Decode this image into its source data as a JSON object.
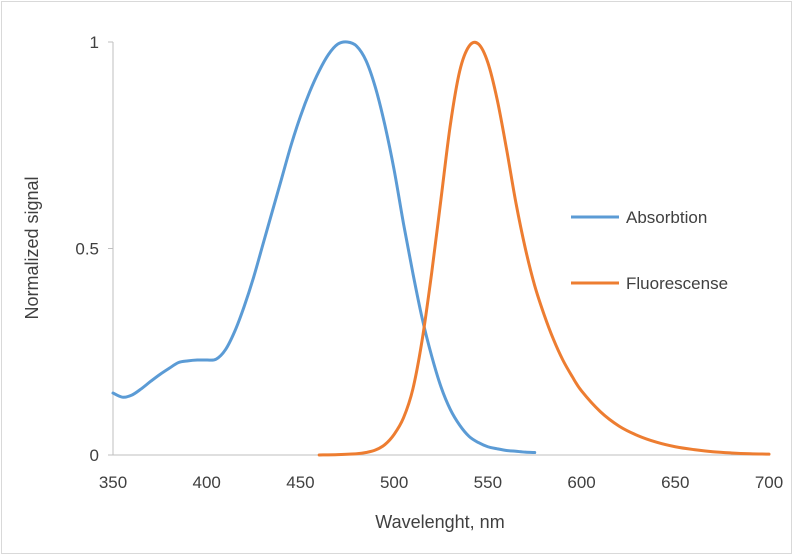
{
  "chart_data": {
    "type": "line",
    "title": "",
    "xlabel": "Wavelenght, nm",
    "ylabel": "Normalized signal",
    "xlim": [
      350,
      700
    ],
    "ylim": [
      0,
      1
    ],
    "x_ticks": [
      350,
      400,
      450,
      500,
      550,
      600,
      650,
      700
    ],
    "y_ticks": [
      {
        "value": 0,
        "label": "0"
      },
      {
        "value": 0.5,
        "label": "0.5"
      },
      {
        "value": 1,
        "label": "1"
      }
    ],
    "grid": false,
    "legend_position": "right",
    "series": [
      {
        "name": "Absorbtion",
        "color": "#5B9BD5",
        "points": [
          [
            350,
            0.15
          ],
          [
            355,
            0.14
          ],
          [
            360,
            0.145
          ],
          [
            365,
            0.16
          ],
          [
            370,
            0.178
          ],
          [
            375,
            0.195
          ],
          [
            380,
            0.21
          ],
          [
            385,
            0.224
          ],
          [
            390,
            0.228
          ],
          [
            395,
            0.23
          ],
          [
            400,
            0.23
          ],
          [
            405,
            0.232
          ],
          [
            410,
            0.255
          ],
          [
            415,
            0.3
          ],
          [
            420,
            0.36
          ],
          [
            425,
            0.43
          ],
          [
            430,
            0.51
          ],
          [
            435,
            0.59
          ],
          [
            440,
            0.67
          ],
          [
            445,
            0.75
          ],
          [
            450,
            0.82
          ],
          [
            455,
            0.88
          ],
          [
            460,
            0.93
          ],
          [
            465,
            0.97
          ],
          [
            470,
            0.995
          ],
          [
            475,
            1.0
          ],
          [
            480,
            0.99
          ],
          [
            485,
            0.955
          ],
          [
            490,
            0.89
          ],
          [
            495,
            0.8
          ],
          [
            500,
            0.69
          ],
          [
            505,
            0.56
          ],
          [
            510,
            0.44
          ],
          [
            515,
            0.33
          ],
          [
            520,
            0.24
          ],
          [
            525,
            0.165
          ],
          [
            530,
            0.11
          ],
          [
            535,
            0.072
          ],
          [
            540,
            0.045
          ],
          [
            545,
            0.03
          ],
          [
            550,
            0.02
          ],
          [
            555,
            0.015
          ],
          [
            560,
            0.011
          ],
          [
            565,
            0.009
          ],
          [
            570,
            0.007
          ],
          [
            575,
            0.006
          ]
        ]
      },
      {
        "name": "Fluorescense",
        "color": "#ED7D31",
        "points": [
          [
            460,
            0.0
          ],
          [
            470,
            0.001
          ],
          [
            480,
            0.003
          ],
          [
            485,
            0.006
          ],
          [
            490,
            0.012
          ],
          [
            495,
            0.025
          ],
          [
            500,
            0.05
          ],
          [
            505,
            0.09
          ],
          [
            510,
            0.16
          ],
          [
            515,
            0.28
          ],
          [
            520,
            0.44
          ],
          [
            525,
            0.62
          ],
          [
            530,
            0.8
          ],
          [
            535,
            0.93
          ],
          [
            540,
            0.99
          ],
          [
            545,
            0.995
          ],
          [
            550,
            0.95
          ],
          [
            555,
            0.86
          ],
          [
            560,
            0.74
          ],
          [
            565,
            0.61
          ],
          [
            570,
            0.5
          ],
          [
            575,
            0.41
          ],
          [
            580,
            0.34
          ],
          [
            585,
            0.28
          ],
          [
            590,
            0.23
          ],
          [
            595,
            0.19
          ],
          [
            600,
            0.155
          ],
          [
            610,
            0.105
          ],
          [
            620,
            0.07
          ],
          [
            630,
            0.047
          ],
          [
            640,
            0.031
          ],
          [
            650,
            0.02
          ],
          [
            660,
            0.013
          ],
          [
            670,
            0.008
          ],
          [
            680,
            0.005
          ],
          [
            690,
            0.003
          ],
          [
            700,
            0.002
          ]
        ]
      }
    ]
  }
}
